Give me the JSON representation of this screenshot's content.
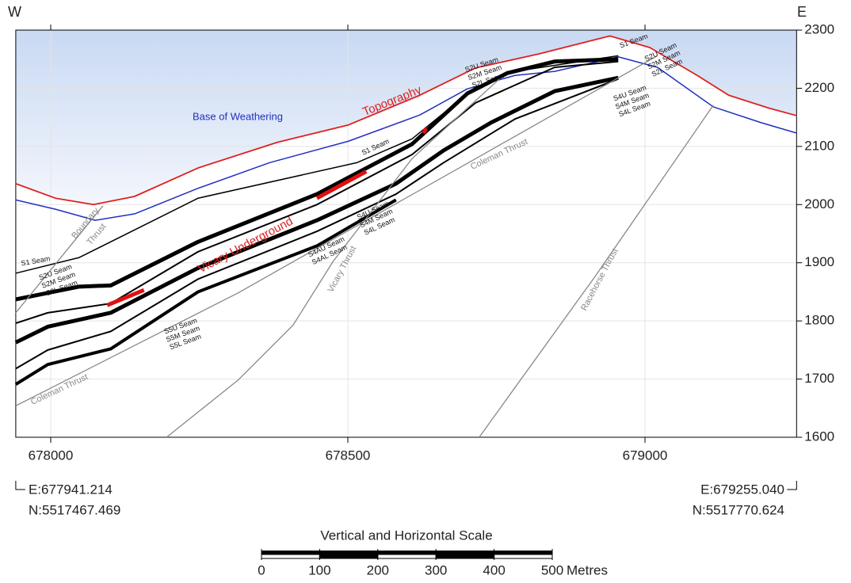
{
  "chart_data": {
    "type": "line",
    "xlim": [
      677941.214,
      679255.04
    ],
    "ylim": [
      1600,
      2300
    ],
    "xticks": [
      678000,
      678500,
      679000
    ],
    "yticks": [
      1600,
      1700,
      1800,
      1900,
      2000,
      2100,
      2200,
      2300
    ],
    "grid": true,
    "west_label": "W",
    "east_label": "E",
    "series": [
      {
        "color": "#e02020",
        "width": 1.8,
        "x": [
          677941.214,
          678008,
          678072,
          678141,
          678248,
          678381,
          678501,
          678621,
          678715,
          678821,
          678941,
          679008,
          679088,
          679141,
          679208,
          679255.04
        ],
        "values": [
          2036,
          2011,
          2000,
          2014,
          2063,
          2107,
          2137,
          2188,
          2235,
          2259,
          2290,
          2270,
          2222,
          2188,
          2166,
          2153
        ]
      },
      {
        "color": "#2030c0",
        "width": 1.5,
        "x": [
          677941.214,
          678008,
          678075,
          678141,
          678248,
          678368,
          678501,
          678621,
          678701,
          678781,
          678848,
          678955,
          679021,
          679115,
          679195,
          679255.04
        ],
        "values": [
          2008,
          1992,
          1973,
          1984,
          2028,
          2072,
          2109,
          2154,
          2199,
          2222,
          2229,
          2254,
          2236,
          2168,
          2141,
          2123
        ]
      },
      {
        "color": "#000000",
        "width": 1.5,
        "x": [
          677941.214,
          678048,
          678248,
          678515,
          678608,
          678715,
          678781,
          678955
        ],
        "values": [
          1882,
          1909,
          2011,
          2072,
          2113,
          2202,
          2229,
          2256
        ]
      },
      {
        "color": "#000000",
        "width": 5,
        "x": [
          677941.214,
          678048,
          678101,
          678248,
          678448,
          678608,
          678701,
          678768,
          678848,
          678955
        ],
        "values": [
          1837,
          1859,
          1861,
          1936,
          2018,
          2104,
          2191,
          2226,
          2246,
          2250
        ]
      },
      {
        "color": "#000000",
        "width": 2,
        "x": [
          677941.214,
          677995,
          678101,
          678248,
          678448,
          678608,
          678715,
          678848,
          678955
        ],
        "values": [
          1796,
          1814,
          1830,
          1919,
          2000,
          2086,
          2175,
          2236,
          2246
        ]
      },
      {
        "color": "#000000",
        "width": 5,
        "x": [
          677941.214,
          677995,
          678101,
          678248,
          678448,
          678581,
          678661,
          678741,
          678848,
          678955
        ],
        "values": [
          1763,
          1790,
          1814,
          1891,
          1973,
          2036,
          2093,
          2141,
          2195,
          2218
        ]
      },
      {
        "color": "#000000",
        "width": 2,
        "x": [
          677941.214,
          677995,
          678101,
          678248,
          678448,
          678581,
          678661,
          678781,
          678955
        ],
        "values": [
          1718,
          1750,
          1782,
          1872,
          1954,
          2018,
          2072,
          2147,
          2216
        ]
      },
      {
        "color": "#000000",
        "width": 4,
        "x": [
          677941.214,
          677995,
          678101,
          678248,
          678448,
          678581
        ],
        "values": [
          1691,
          1725,
          1752,
          1850,
          1929,
          2008
        ]
      },
      {
        "color": "#e01010",
        "width": 5,
        "x": [
          678448,
          678531
        ],
        "values": [
          2011,
          2057
        ]
      },
      {
        "color": "#e01010",
        "width": 5,
        "x": [
          678095,
          678157
        ],
        "values": [
          1827,
          1853
        ]
      },
      {
        "color": "#e01010",
        "width": 5,
        "x": [
          678627,
          678632
        ],
        "values": [
          2123,
          2131
        ]
      },
      {
        "color": "#888888",
        "width": 1.3,
        "x": [
          677941.214,
          678088
        ],
        "values": [
          1814,
          1998
        ]
      },
      {
        "color": "#888888",
        "width": 1.3,
        "x": [
          677941.214,
          678315,
          678715,
          679021
        ],
        "values": [
          1654,
          1848,
          2079,
          2256
        ]
      },
      {
        "color": "#888888",
        "width": 1.3,
        "x": [
          678195,
          678315,
          678408,
          678475,
          678608,
          678755
        ],
        "values": [
          1600,
          1698,
          1793,
          1902,
          2079,
          2216
        ]
      },
      {
        "color": "#888888",
        "width": 1.3,
        "x": [
          678721,
          678915,
          679115
        ],
        "values": [
          1600,
          1875,
          2171
        ]
      }
    ],
    "annotations": [
      "Topography",
      "Base of Weathering",
      "Vicary Underground",
      "S1 Seam",
      "S2U Seam",
      "S2M Seam",
      "S2L Seam",
      "S1 Seam",
      "S2U Seam",
      "S2M Seam",
      "S2L Seam",
      "S1 Seam",
      "S2U Seam",
      "S2M Seam",
      "S2L Seam",
      "S4U Seam",
      "S4M Seam",
      "S4L Seam",
      "S4U Seam",
      "S4M Seam",
      "S4L Seam",
      "S4AU Seam",
      "S4AL Seam",
      "S5U Seam",
      "S5M Seam",
      "S5L Seam",
      "Boundary",
      "Thrust",
      "Coleman Thrust",
      "Coleman Thrust",
      "Vicary Thrust",
      "Racehorse Thrust"
    ],
    "corners": {
      "left": [
        "E:677941.214",
        "N:5517467.469"
      ],
      "right": [
        "E:679255.040",
        "N:5517770.624"
      ]
    },
    "scale": {
      "title": "Vertical and Horizontal Scale",
      "ticks": [
        0,
        100,
        200,
        300,
        400,
        500
      ],
      "unit": "Metres"
    }
  }
}
